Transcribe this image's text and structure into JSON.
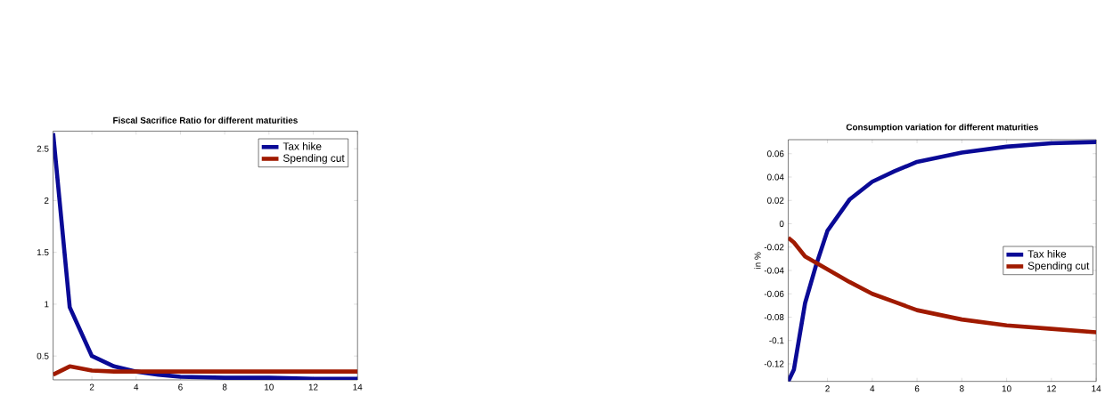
{
  "chart_data": [
    {
      "type": "line",
      "title": "Fiscal Sacrifice Ratio for different maturities",
      "xlim": [
        0.25,
        14
      ],
      "xticks": [
        2,
        4,
        6,
        8,
        10,
        12,
        14
      ],
      "ylim": [
        0.27,
        2.67
      ],
      "yticks": [
        0.5,
        1,
        1.5,
        2,
        2.5
      ],
      "legend": "top right",
      "grid": false,
      "series": [
        {
          "name": "Tax hike",
          "color": "#0a0a96",
          "x": [
            0.25,
            1,
            2,
            3,
            4,
            5,
            6,
            8,
            10,
            12,
            14
          ],
          "values": [
            2.65,
            0.97,
            0.5,
            0.4,
            0.35,
            0.32,
            0.3,
            0.29,
            0.29,
            0.28,
            0.28
          ]
        },
        {
          "name": "Spending cut",
          "color": "#a01a00",
          "x": [
            0.25,
            1,
            2,
            3,
            4,
            6,
            8,
            10,
            12,
            14
          ],
          "values": [
            0.32,
            0.4,
            0.36,
            0.35,
            0.35,
            0.35,
            0.35,
            0.35,
            0.35,
            0.35
          ]
        }
      ]
    },
    {
      "type": "line",
      "title": "Consumption variation for different maturities",
      "ylabel": "in %",
      "xlim": [
        0.25,
        14
      ],
      "xticks": [
        2,
        4,
        6,
        8,
        10,
        12,
        14
      ],
      "ylim": [
        -0.135,
        0.072
      ],
      "yticks": [
        -0.12,
        -0.1,
        -0.08,
        -0.06,
        -0.04,
        -0.02,
        0,
        0.02,
        0.04,
        0.06
      ],
      "legend": "right",
      "grid": false,
      "series": [
        {
          "name": "Tax hike",
          "color": "#0a0a96",
          "x": [
            0.25,
            0.5,
            1,
            1.5,
            2,
            3,
            4,
            5,
            6,
            8,
            10,
            12,
            14
          ],
          "values": [
            -0.135,
            -0.125,
            -0.068,
            -0.035,
            -0.006,
            0.021,
            0.036,
            0.045,
            0.053,
            0.061,
            0.066,
            0.069,
            0.07
          ]
        },
        {
          "name": "Spending cut",
          "color": "#a01a00",
          "x": [
            0.25,
            0.5,
            1,
            2,
            3,
            4,
            5,
            6,
            8,
            10,
            12,
            14
          ],
          "values": [
            -0.012,
            -0.016,
            -0.028,
            -0.039,
            -0.05,
            -0.06,
            -0.067,
            -0.074,
            -0.082,
            -0.087,
            -0.09,
            -0.093
          ]
        }
      ]
    }
  ]
}
